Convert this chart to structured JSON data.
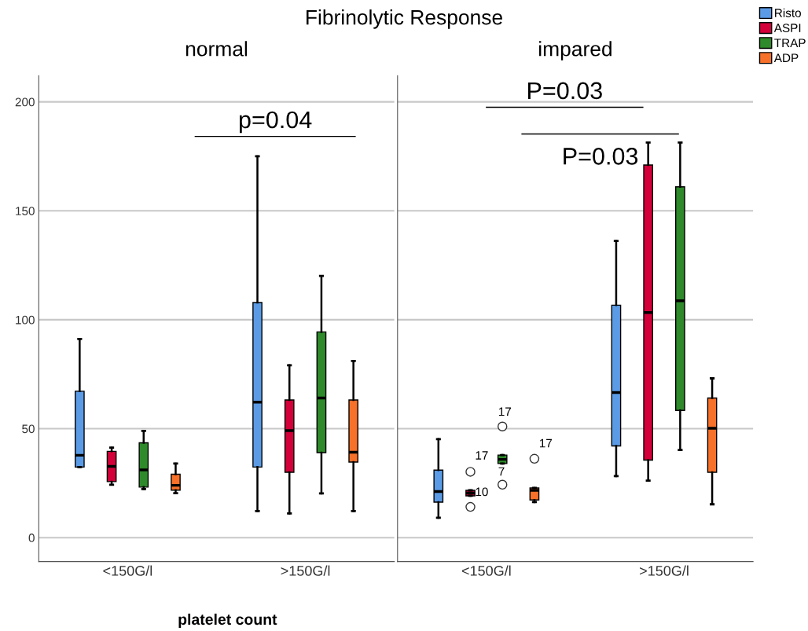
{
  "chart_data": [
    {
      "type": "box",
      "title": "Fibrinolytic Response",
      "subtitle": "normal",
      "xlabel": "platelet count",
      "categories": [
        "<150G/l",
        ">150G/l"
      ],
      "ylim": [
        -11,
        212
      ],
      "yticks": [
        0,
        50,
        100,
        150,
        200
      ],
      "grid": "y",
      "legend": false,
      "series": [
        {
          "color": "#5b9be6",
          "boxes": [
            {
              "low": 32.4,
              "q1": 32.4,
              "median": 37.8,
              "q3": 67.2,
              "high": 91.2
            },
            {
              "low": 12.2,
              "q1": 32.4,
              "median": 62.2,
              "q3": 107.9,
              "high": 175
            }
          ]
        },
        {
          "color": "#d4003a",
          "boxes": [
            {
              "low": 24.3,
              "q1": 25.7,
              "median": 32.7,
              "q3": 39.6,
              "high": 41.3
            },
            {
              "low": 11.1,
              "q1": 30,
              "median": 49.1,
              "q3": 63.2,
              "high": 79.1
            }
          ]
        },
        {
          "color": "#2e8a2a",
          "boxes": [
            {
              "low": 22.3,
              "q1": 23.2,
              "median": 31.1,
              "q3": 43.5,
              "high": 49
            },
            {
              "low": 20.3,
              "q1": 39,
              "median": 64.1,
              "q3": 94.4,
              "high": 120.1
            }
          ]
        },
        {
          "color": "#f7712a",
          "boxes": [
            {
              "low": 20.4,
              "q1": 21.8,
              "median": 24,
              "q3": 29.1,
              "high": 34
            },
            {
              "low": 12.2,
              "q1": 34.7,
              "median": 39.2,
              "q3": 63.2,
              "high": 81.1
            }
          ]
        }
      ],
      "annotations": [
        "p=0.04"
      ]
    },
    {
      "type": "box",
      "subtitle": "impared",
      "categories": [
        "<150G/l",
        ">150G/l"
      ],
      "ylim": [
        -11,
        212
      ],
      "yticks": [
        0,
        50,
        100,
        150,
        200
      ],
      "grid": "y",
      "tick_labels": "x",
      "legend": "top right",
      "series": [
        {
          "name": "Risto",
          "color": "#5b9be6",
          "boxes": [
            {
              "low": 9.1,
              "q1": 16.3,
              "median": 21.2,
              "q3": 31,
              "high": 45.2
            },
            {
              "low": 28.2,
              "q1": 42.1,
              "median": 66.6,
              "q3": 106.7,
              "high": 136.2
            }
          ]
        },
        {
          "name": "ASPI",
          "color": "#d4003a",
          "boxes": [
            {
              "low": 19.2,
              "q1": 19.2,
              "median": 20.4,
              "q3": 21.7,
              "high": 21.7,
              "outliers": [
                30.2,
                14.1
              ]
            },
            {
              "low": 26.2,
              "q1": 35.6,
              "median": 103.3,
              "q3": 171,
              "high": 181.3
            }
          ]
        },
        {
          "name": "TRAP",
          "color": "#2e8a2a",
          "boxes": [
            {
              "low": 34,
              "q1": 34,
              "median": 35.9,
              "q3": 37.9,
              "high": 37.9,
              "outliers": [
                51,
                24.3
              ]
            },
            {
              "low": 40.2,
              "q1": 58.4,
              "median": 108.7,
              "q3": 161,
              "high": 181.3
            }
          ]
        },
        {
          "name": "ADP",
          "color": "#f7712a",
          "boxes": [
            {
              "low": 16.3,
              "q1": 17.3,
              "median": 21.7,
              "q3": 22.8,
              "high": 22.8,
              "outliers": [
                36.2
              ]
            },
            {
              "low": 15.3,
              "q1": 30,
              "median": 50.2,
              "q3": 64.1,
              "high": 73.1
            }
          ]
        }
      ],
      "annotations": [
        "P=0.03",
        "P=0.03",
        "17",
        "10",
        "17",
        "7",
        "17"
      ]
    }
  ]
}
